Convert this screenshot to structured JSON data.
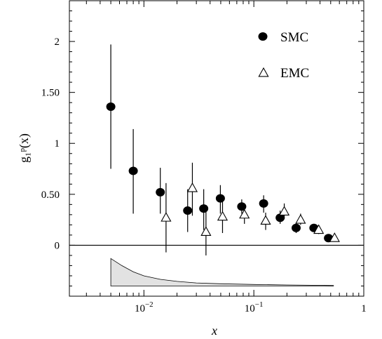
{
  "chart_data": {
    "type": "scatter",
    "title": "",
    "xlabel": "x",
    "ylabel": "g₁ᵖ(x)",
    "xscale": "log",
    "xlim": [
      0.0021,
      1.0
    ],
    "ylim": [
      -0.5,
      2.4
    ],
    "x_ticks": [
      {
        "value": 0.01,
        "label": "10^-2",
        "base": "10",
        "exp": "−2"
      },
      {
        "value": 0.1,
        "label": "10^-1",
        "base": "10",
        "exp": "−1"
      },
      {
        "value": 1,
        "label": "1",
        "base": "1",
        "exp": ""
      }
    ],
    "y_ticks": [
      {
        "value": 0,
        "label": "0"
      },
      {
        "value": 0.5,
        "label": "0.50"
      },
      {
        "value": 1,
        "label": "1"
      },
      {
        "value": 1.5,
        "label": "1.50"
      },
      {
        "value": 2,
        "label": "2"
      }
    ],
    "zero_line": true,
    "grid": false,
    "legend_position": "top-right",
    "series": [
      {
        "name": "SMC",
        "marker": "filled-circle",
        "points": [
          {
            "x": 0.005,
            "y": 1.36,
            "lo": 0.75,
            "hi": 1.97
          },
          {
            "x": 0.008,
            "y": 0.73,
            "lo": 0.31,
            "hi": 1.14
          },
          {
            "x": 0.0141,
            "y": 0.52,
            "lo": 0.31,
            "hi": 0.76
          },
          {
            "x": 0.025,
            "y": 0.34,
            "lo": 0.13,
            "hi": 0.55
          },
          {
            "x": 0.035,
            "y": 0.36,
            "lo": 0.15,
            "hi": 0.55
          },
          {
            "x": 0.0496,
            "y": 0.46,
            "lo": 0.31,
            "hi": 0.59
          },
          {
            "x": 0.0776,
            "y": 0.38,
            "lo": 0.31,
            "hi": 0.45
          },
          {
            "x": 0.1228,
            "y": 0.41,
            "lo": 0.32,
            "hi": 0.49
          },
          {
            "x": 0.1735,
            "y": 0.27,
            "lo": 0.21,
            "hi": 0.34
          },
          {
            "x": 0.2425,
            "y": 0.17,
            "lo": 0.12,
            "hi": 0.22
          },
          {
            "x": 0.3518,
            "y": 0.17,
            "lo": 0.14,
            "hi": 0.21
          },
          {
            "x": 0.4774,
            "y": 0.07,
            "lo": 0.05,
            "hi": 0.09
          }
        ]
      },
      {
        "name": "EMC",
        "marker": "open-triangle",
        "points": [
          {
            "x": 0.0159,
            "y": 0.27,
            "lo": -0.07,
            "hi": 0.61
          },
          {
            "x": 0.0276,
            "y": 0.56,
            "lo": 0.29,
            "hi": 0.81
          },
          {
            "x": 0.0367,
            "y": 0.13,
            "lo": -0.1,
            "hi": 0.36
          },
          {
            "x": 0.0519,
            "y": 0.28,
            "lo": 0.12,
            "hi": 0.44
          },
          {
            "x": 0.0821,
            "y": 0.3,
            "lo": 0.21,
            "hi": 0.39
          },
          {
            "x": 0.1281,
            "y": 0.24,
            "lo": 0.15,
            "hi": 0.32
          },
          {
            "x": 0.1891,
            "y": 0.33,
            "lo": 0.26,
            "hi": 0.41
          },
          {
            "x": 0.2663,
            "y": 0.25,
            "lo": 0.2,
            "hi": 0.31
          },
          {
            "x": 0.3889,
            "y": 0.15,
            "lo": 0.11,
            "hi": 0.19
          },
          {
            "x": 0.5425,
            "y": 0.07,
            "lo": 0.05,
            "hi": 0.09
          }
        ]
      }
    ],
    "systematic_band": {
      "baseline": -0.4,
      "fill": "#e2e2e2",
      "points": [
        {
          "x": 0.005,
          "y": -0.13
        },
        {
          "x": 0.0063,
          "y": -0.2
        },
        {
          "x": 0.008,
          "y": -0.26
        },
        {
          "x": 0.01,
          "y": -0.3
        },
        {
          "x": 0.0141,
          "y": -0.335
        },
        {
          "x": 0.02,
          "y": -0.355
        },
        {
          "x": 0.03,
          "y": -0.37
        },
        {
          "x": 0.05,
          "y": -0.378
        },
        {
          "x": 0.1,
          "y": -0.385
        },
        {
          "x": 0.2,
          "y": -0.39
        },
        {
          "x": 0.4,
          "y": -0.393
        },
        {
          "x": 0.53,
          "y": -0.395
        }
      ]
    }
  }
}
